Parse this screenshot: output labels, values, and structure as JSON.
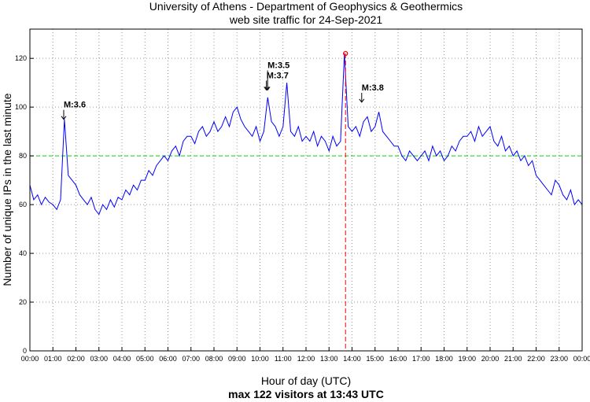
{
  "chart_data": {
    "type": "line",
    "title": [
      "University of Athens - Department of Geophysics & Geothermics",
      "web site traffic for 24-Sep-2021"
    ],
    "xlabel": "Hour of day (UTC)",
    "ylabel": "Number of unique IPs in the last minute",
    "subtitle": "max 122 visitors at 13:43 UTC",
    "xlim_hours": [
      0,
      24
    ],
    "ylim": [
      0,
      132
    ],
    "grid": true,
    "x_tick_labels": [
      "00:00",
      "01:00",
      "02:00",
      "03:00",
      "04:00",
      "05:00",
      "06:00",
      "07:00",
      "08:00",
      "09:00",
      "10:00",
      "11:00",
      "12:00",
      "13:00",
      "14:00",
      "15:00",
      "16:00",
      "17:00",
      "18:00",
      "19:00",
      "20:00",
      "21:00",
      "22:00",
      "23:00",
      "00:00"
    ],
    "y_tick_values": [
      0,
      20,
      40,
      60,
      80,
      100,
      120
    ],
    "sample_interval_minutes": 10,
    "series": [
      {
        "name": "visitors",
        "color": "#0000ff",
        "values": [
          68,
          62,
          64,
          60,
          63,
          61,
          60,
          58,
          62,
          95,
          72,
          70,
          68,
          64,
          62,
          60,
          63,
          58,
          56,
          60,
          58,
          62,
          59,
          63,
          62,
          66,
          64,
          68,
          66,
          70,
          70,
          74,
          72,
          76,
          78,
          80,
          78,
          82,
          84,
          80,
          86,
          88,
          88,
          85,
          90,
          92,
          88,
          90,
          94,
          90,
          92,
          96,
          92,
          98,
          100,
          95,
          92,
          90,
          88,
          92,
          86,
          90,
          104,
          94,
          92,
          88,
          92,
          110,
          90,
          88,
          92,
          86,
          88,
          86,
          90,
          84,
          88,
          86,
          82,
          88,
          84,
          86,
          122,
          92,
          90,
          92,
          88,
          94,
          96,
          90,
          92,
          98,
          90,
          88,
          86,
          84,
          84,
          80,
          78,
          82,
          80,
          78,
          80,
          82,
          78,
          84,
          80,
          82,
          78,
          80,
          84,
          82,
          86,
          88,
          88,
          90,
          86,
          92,
          88,
          90,
          92,
          86,
          84,
          88,
          82,
          84,
          80,
          82,
          78,
          80,
          76,
          78,
          72,
          70,
          68,
          66,
          64,
          70,
          68,
          64,
          62,
          66,
          60,
          62,
          60
        ]
      }
    ],
    "threshold": {
      "value": 80,
      "color": "#00dd00"
    },
    "max_marker": {
      "hour": 13.717,
      "value": 122,
      "color": "#ff0000"
    },
    "annotations": [
      {
        "label": "M:3.6",
        "hour": 1.47,
        "value": 95
      },
      {
        "label": "M:3.7",
        "hour": 10.28,
        "value": 107
      },
      {
        "label": "M:3.5",
        "hour": 10.33,
        "value": 107
      },
      {
        "label": "M:3.8",
        "hour": 14.42,
        "value": 102
      }
    ]
  }
}
